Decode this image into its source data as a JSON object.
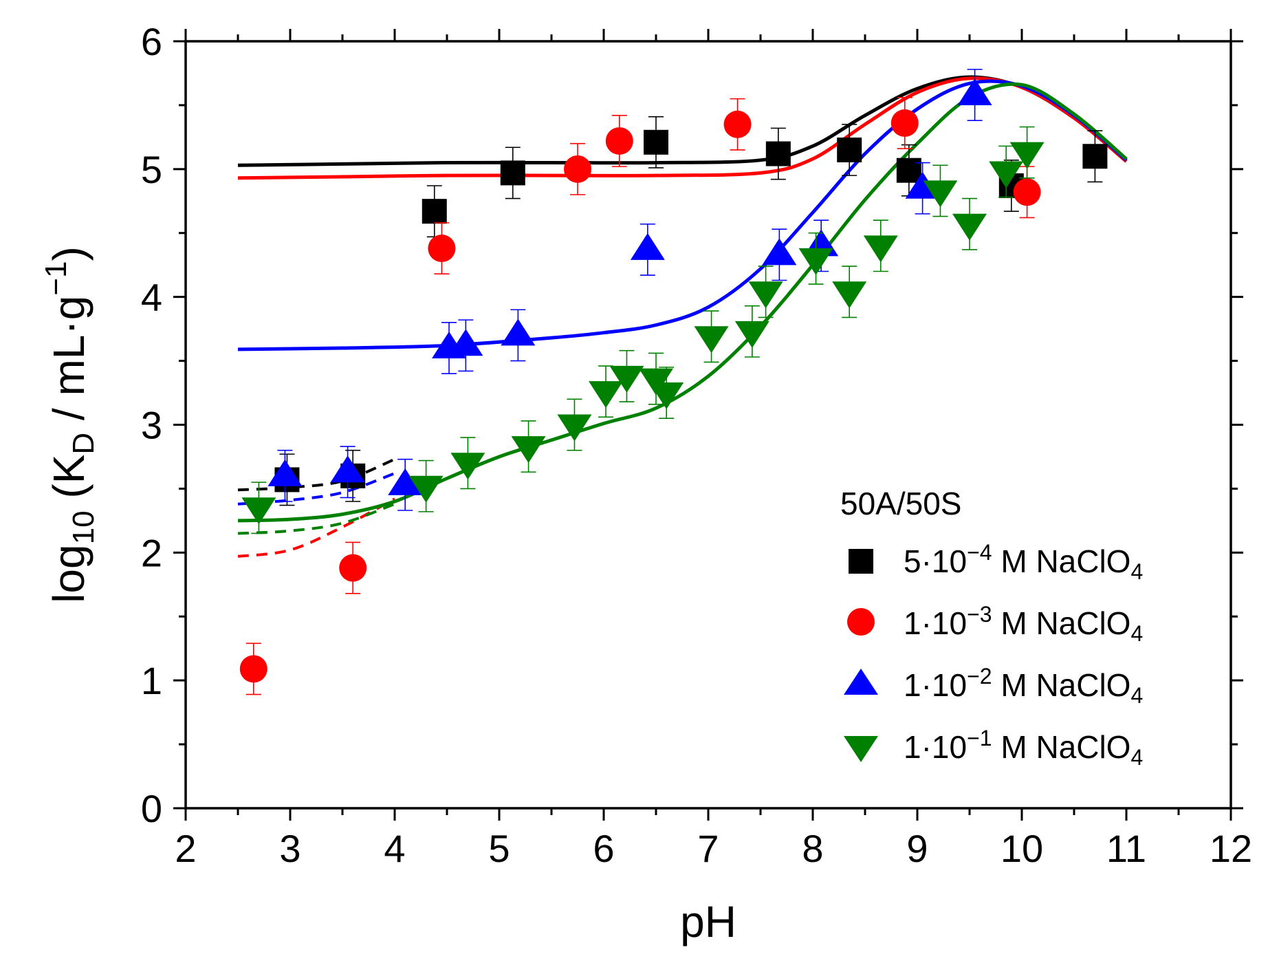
{
  "chart_data": {
    "type": "scatter",
    "title": "",
    "xlabel": "pH",
    "ylabel": {
      "main": "log",
      "sub1": "10",
      "mid": " (K",
      "sub2": "D",
      "after": " / mL·g",
      "sup": "−1",
      "close": ")"
    },
    "xlim": [
      2,
      12
    ],
    "ylim": [
      0,
      6
    ],
    "x_ticks": [
      2,
      3,
      4,
      5,
      6,
      7,
      8,
      9,
      10,
      11,
      12
    ],
    "y_ticks": [
      0,
      1,
      2,
      3,
      4,
      5,
      6
    ],
    "x_tick_labels": [
      "2",
      "3",
      "4",
      "5",
      "6",
      "7",
      "8",
      "9",
      "10",
      "11",
      "12"
    ],
    "y_tick_labels": [
      "0",
      "1",
      "2",
      "3",
      "4",
      "5",
      "6"
    ],
    "legend": {
      "position": "bottom-right",
      "title": "50A/50S",
      "entries": [
        {
          "pre": "5·10",
          "sup": "−4",
          "mid": " M NaClO",
          "sub": "4"
        },
        {
          "pre": "1·10",
          "sup": "−3",
          "mid": " M NaClO",
          "sub": "4"
        },
        {
          "pre": "1·10",
          "sup": "−2",
          "mid": " M NaClO",
          "sub": "4"
        },
        {
          "pre": "1·10",
          "sup": "−1",
          "mid": " M NaClO",
          "sub": "4"
        }
      ]
    },
    "series": [
      {
        "name": "5·10−4 M NaClO4",
        "color": "#000000",
        "marker": "square",
        "points": [
          [
            2.97,
            2.57
          ],
          [
            3.6,
            2.6
          ],
          [
            4.38,
            4.67
          ],
          [
            5.13,
            4.97
          ],
          [
            6.5,
            5.21
          ],
          [
            7.67,
            5.12
          ],
          [
            8.35,
            5.15
          ],
          [
            8.92,
            4.99
          ],
          [
            9.9,
            4.87
          ],
          [
            10.7,
            5.1
          ]
        ],
        "errors": [
          0.2,
          0.2,
          0.2,
          0.2,
          0.2,
          0.2,
          0.2,
          0.2,
          0.2,
          0.2
        ],
        "fit": [
          [
            2.5,
            5.03
          ],
          [
            3.5,
            5.04
          ],
          [
            4.5,
            5.05
          ],
          [
            5.5,
            5.05
          ],
          [
            6.5,
            5.05
          ],
          [
            7.5,
            5.07
          ],
          [
            8.0,
            5.18
          ],
          [
            8.5,
            5.42
          ],
          [
            9.0,
            5.63
          ],
          [
            9.5,
            5.72
          ],
          [
            10.0,
            5.64
          ],
          [
            10.5,
            5.4
          ],
          [
            11.0,
            5.07
          ]
        ],
        "dashed": [
          [
            2.5,
            2.49
          ],
          [
            3.0,
            2.51
          ],
          [
            3.5,
            2.56
          ],
          [
            4.0,
            2.73
          ]
        ]
      },
      {
        "name": "1·10−3 M NaClO4",
        "color": "#ff0000",
        "marker": "circle",
        "points": [
          [
            2.65,
            1.09
          ],
          [
            3.6,
            1.88
          ],
          [
            4.45,
            4.38
          ],
          [
            5.75,
            5.0
          ],
          [
            6.15,
            5.22
          ],
          [
            7.28,
            5.35
          ],
          [
            8.88,
            5.36
          ],
          [
            10.05,
            4.82
          ]
        ],
        "errors": [
          0.2,
          0.2,
          0.2,
          0.2,
          0.2,
          0.2,
          0.2,
          0.2
        ],
        "fit": [
          [
            2.5,
            4.93
          ],
          [
            3.5,
            4.94
          ],
          [
            4.5,
            4.95
          ],
          [
            5.5,
            4.95
          ],
          [
            6.5,
            4.95
          ],
          [
            7.5,
            4.97
          ],
          [
            8.0,
            5.08
          ],
          [
            8.5,
            5.35
          ],
          [
            9.0,
            5.6
          ],
          [
            9.5,
            5.71
          ],
          [
            10.0,
            5.64
          ],
          [
            10.5,
            5.4
          ],
          [
            11.0,
            5.06
          ]
        ],
        "dashed": [
          [
            2.5,
            1.97
          ],
          [
            3.0,
            2.02
          ],
          [
            3.5,
            2.2
          ],
          [
            4.0,
            2.42
          ]
        ]
      },
      {
        "name": "1·10−2 M NaClO4",
        "color": "#0000ff",
        "marker": "triangle-up",
        "points": [
          [
            2.95,
            2.6
          ],
          [
            3.55,
            2.63
          ],
          [
            4.1,
            2.53
          ],
          [
            4.52,
            3.6
          ],
          [
            4.68,
            3.62
          ],
          [
            5.18,
            3.7
          ],
          [
            6.42,
            4.37
          ],
          [
            7.68,
            4.33
          ],
          [
            8.08,
            4.4
          ],
          [
            9.05,
            4.85
          ],
          [
            9.55,
            5.58
          ]
        ],
        "errors": [
          0.2,
          0.2,
          0.2,
          0.2,
          0.2,
          0.2,
          0.2,
          0.2,
          0.2,
          0.2,
          0.2
        ],
        "fit": [
          [
            2.5,
            3.59
          ],
          [
            3.5,
            3.6
          ],
          [
            4.5,
            3.62
          ],
          [
            5.5,
            3.68
          ],
          [
            6.0,
            3.72
          ],
          [
            6.5,
            3.78
          ],
          [
            7.0,
            3.92
          ],
          [
            7.5,
            4.22
          ],
          [
            8.0,
            4.66
          ],
          [
            8.5,
            5.12
          ],
          [
            9.0,
            5.47
          ],
          [
            9.5,
            5.67
          ],
          [
            10.0,
            5.65
          ],
          [
            10.5,
            5.42
          ],
          [
            11.0,
            5.07
          ]
        ],
        "dashed": [
          [
            2.5,
            2.38
          ],
          [
            3.0,
            2.41
          ],
          [
            3.5,
            2.47
          ],
          [
            4.0,
            2.62
          ]
        ]
      },
      {
        "name": "1·10−1 M NaClO4",
        "color": "#008000",
        "marker": "triangle-down",
        "points": [
          [
            2.7,
            2.35
          ],
          [
            4.3,
            2.52
          ],
          [
            4.7,
            2.7
          ],
          [
            5.28,
            2.83
          ],
          [
            5.72,
            3.0
          ],
          [
            6.02,
            3.26
          ],
          [
            6.22,
            3.38
          ],
          [
            6.5,
            3.36
          ],
          [
            6.6,
            3.25
          ],
          [
            7.03,
            3.69
          ],
          [
            7.42,
            3.73
          ],
          [
            7.55,
            4.04
          ],
          [
            8.03,
            4.3
          ],
          [
            8.35,
            4.04
          ],
          [
            8.65,
            4.4
          ],
          [
            9.22,
            4.83
          ],
          [
            9.5,
            4.57
          ],
          [
            9.85,
            4.98
          ],
          [
            10.05,
            5.13
          ]
        ],
        "errors": [
          0.2,
          0.2,
          0.2,
          0.2,
          0.2,
          0.2,
          0.2,
          0.2,
          0.2,
          0.2,
          0.2,
          0.2,
          0.2,
          0.2,
          0.2,
          0.2,
          0.2,
          0.2,
          0.2
        ],
        "fit": [
          [
            2.5,
            2.25
          ],
          [
            3.0,
            2.26
          ],
          [
            3.5,
            2.3
          ],
          [
            4.0,
            2.4
          ],
          [
            4.5,
            2.58
          ],
          [
            5.0,
            2.75
          ],
          [
            5.5,
            2.88
          ],
          [
            6.0,
            3.01
          ],
          [
            6.5,
            3.13
          ],
          [
            7.0,
            3.38
          ],
          [
            7.5,
            3.77
          ],
          [
            8.0,
            4.25
          ],
          [
            8.5,
            4.76
          ],
          [
            9.0,
            5.2
          ],
          [
            9.5,
            5.56
          ],
          [
            10.0,
            5.66
          ],
          [
            10.5,
            5.43
          ],
          [
            11.0,
            5.08
          ]
        ],
        "dashed": [
          [
            2.5,
            2.15
          ],
          [
            3.0,
            2.17
          ],
          [
            3.5,
            2.23
          ],
          [
            4.0,
            2.38
          ]
        ]
      }
    ]
  }
}
